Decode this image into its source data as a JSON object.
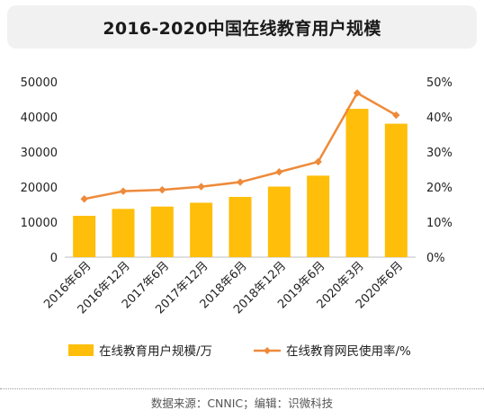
{
  "header": {
    "title": "2016-2020中国在线教育用户规模"
  },
  "footer": {
    "source": "数据来源：CNNIC；编辑：识微科技"
  },
  "colors": {
    "bar": "#FFBE0A",
    "line": "#EE8A3A",
    "axis": "#bfbfbf",
    "text": "#222222"
  },
  "chart_data": {
    "type": "bar",
    "title": "2016-2020中国在线教育用户规模",
    "categories": [
      "2016年6月",
      "2016年12月",
      "2017年6月",
      "2017年12月",
      "2018年6月",
      "2018年12月",
      "2019年6月",
      "2020年3月",
      "2020年6月"
    ],
    "series": [
      {
        "name": "在线教育用户规模/万",
        "type": "bar",
        "axis": "left",
        "values": [
          11789,
          13764,
          14426,
          15518,
          17186,
          20123,
          23246,
          42296,
          38060
        ]
      },
      {
        "name": "在线教育网民使用率/%",
        "type": "line",
        "axis": "right",
        "values": [
          16.6,
          18.8,
          19.2,
          20.1,
          21.4,
          24.3,
          27.2,
          46.8,
          40.5
        ]
      }
    ],
    "y_left": {
      "min": 0,
      "max": 50000,
      "ticks": [
        "0",
        "10000",
        "20000",
        "30000",
        "40000",
        "50000"
      ]
    },
    "y_right": {
      "min": 0,
      "max": 50,
      "ticks": [
        "0%",
        "10%",
        "20%",
        "30%",
        "40%",
        "50%"
      ]
    },
    "grid": false,
    "legend_position": "bottom"
  }
}
